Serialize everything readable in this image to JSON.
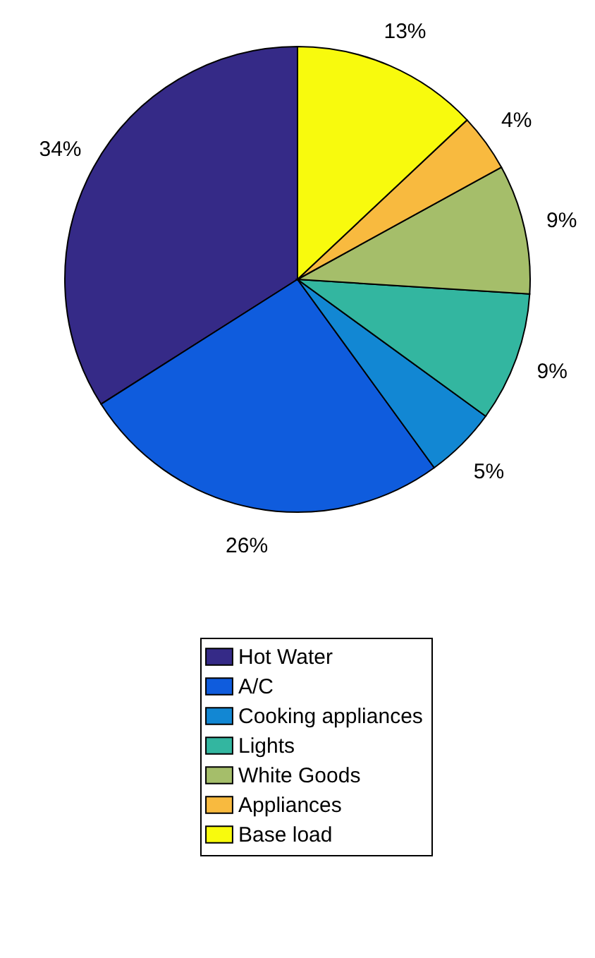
{
  "chart_data": {
    "type": "pie",
    "categories": [
      "Hot Water",
      "A/C",
      "Cooking appliances",
      "Lights",
      "White Goods",
      "Appliances",
      "Base load"
    ],
    "values": [
      34,
      26,
      5,
      9,
      9,
      4,
      13
    ],
    "value_labels": [
      "34%",
      "26%",
      "5%",
      "9%",
      "9%",
      "4%",
      "13%"
    ],
    "colors": [
      "#352a87",
      "#0f5cdd",
      "#1287d3",
      "#33b6a0",
      "#a5be6a",
      "#f8ba3f",
      "#f8fa0d"
    ],
    "legend": "bottom"
  }
}
